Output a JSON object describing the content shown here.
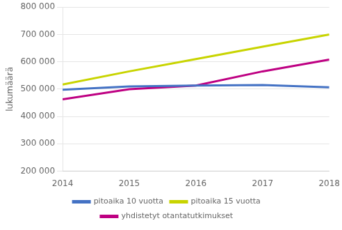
{
  "chart_data": {
    "type": "line",
    "ylabel": "lukumäärä",
    "x": [
      2014,
      2015,
      2016,
      2017,
      2018
    ],
    "xlim": [
      2014,
      2018
    ],
    "xticks": [
      2014,
      2015,
      2016,
      2017,
      2018
    ],
    "series": [
      {
        "name": "pitoaika 10 vuotta",
        "color": "#4472c4",
        "values": [
          498000,
          510000,
          513000,
          515000,
          507000
        ]
      },
      {
        "name": "pitoaika 15 vuotta",
        "color": "#c8d400",
        "values": [
          517000,
          565000,
          610000,
          655000,
          700000
        ]
      },
      {
        "name": "yhdistetyt otantatutkimukset",
        "color": "#be0082",
        "values": [
          463000,
          500000,
          513000,
          565000,
          608000
        ]
      }
    ],
    "ylim": [
      200000,
      800000
    ],
    "yticks": [
      {
        "value": 200000,
        "label": "200 000"
      },
      {
        "value": 300000,
        "label": "300 000"
      },
      {
        "value": 400000,
        "label": "400 000"
      },
      {
        "value": 500000,
        "label": "500 000"
      },
      {
        "value": 600000,
        "label": "600 000"
      },
      {
        "value": 700000,
        "label": "700 000"
      },
      {
        "value": 800000,
        "label": "800 000"
      }
    ],
    "grid": "y",
    "legend": "bottom"
  }
}
